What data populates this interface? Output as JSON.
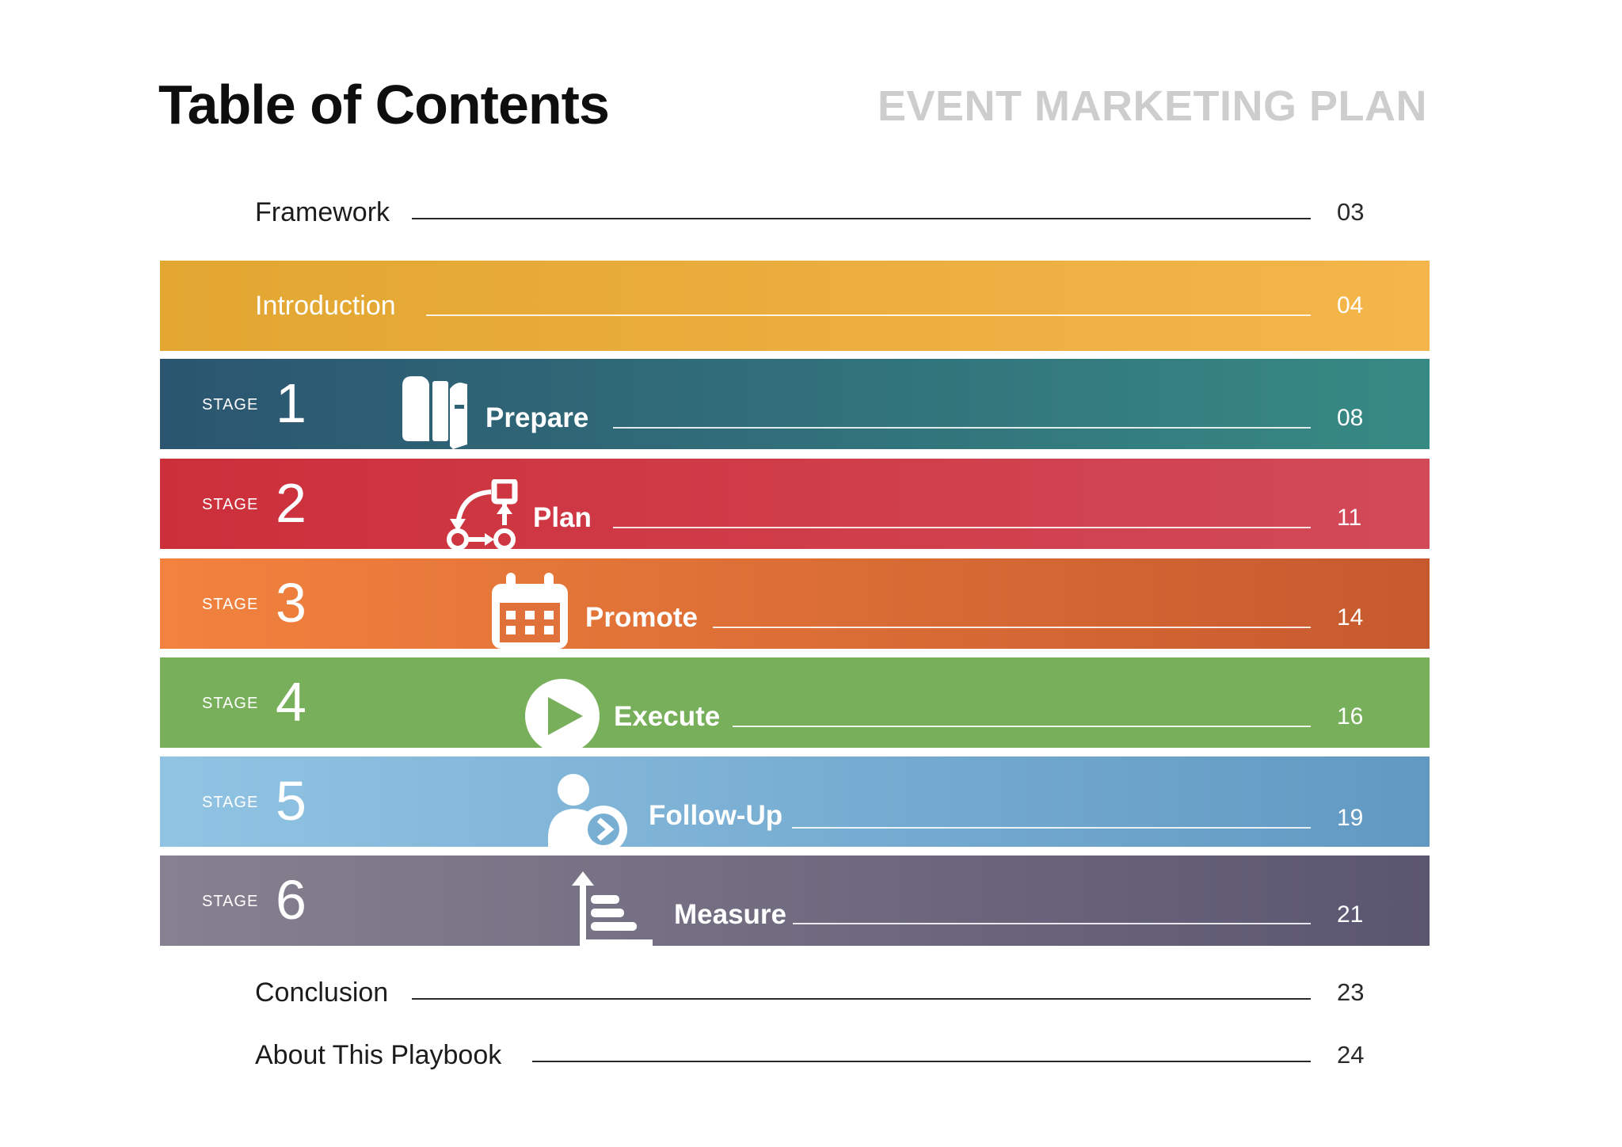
{
  "header": {
    "title": "Table of Contents",
    "subtitle": "EVENT MARKETING PLAN"
  },
  "toc": {
    "framework": {
      "label": "Framework",
      "page": "03"
    },
    "introduction": {
      "label": "Introduction",
      "page": "04"
    },
    "stages": [
      {
        "stage_word": "STAGE",
        "number": "1",
        "name": "Prepare",
        "page": "08",
        "icon": "books-icon",
        "colors": [
          "#2b5570",
          "#378a84"
        ]
      },
      {
        "stage_word": "STAGE",
        "number": "2",
        "name": "Plan",
        "page": "11",
        "icon": "workflow-icon",
        "colors": [
          "#cc2f3a",
          "#d24a58"
        ]
      },
      {
        "stage_word": "STAGE",
        "number": "3",
        "name": "Promote",
        "page": "14",
        "icon": "calendar-icon",
        "colors": [
          "#f2823e",
          "#c65a2e"
        ]
      },
      {
        "stage_word": "STAGE",
        "number": "4",
        "name": "Execute",
        "page": "16",
        "icon": "play-icon",
        "colors": [
          "#78af5a",
          "#78af5a"
        ]
      },
      {
        "stage_word": "STAGE",
        "number": "5",
        "name": "Follow-Up",
        "page": "19",
        "icon": "user-followup-icon",
        "colors": [
          "#91c4e3",
          "#6199c3"
        ]
      },
      {
        "stage_word": "STAGE",
        "number": "6",
        "name": "Measure",
        "page": "21",
        "icon": "bar-chart-icon",
        "colors": [
          "#868090",
          "#5b5670"
        ]
      }
    ],
    "conclusion": {
      "label": "Conclusion",
      "page": "23"
    },
    "about": {
      "label": "About This Playbook",
      "page": "24"
    }
  },
  "colors": {
    "introduction_band": [
      "#e2a631",
      "#f4b54a"
    ],
    "title": "#0e0e0e",
    "subtitle": "#cdcdcd"
  }
}
